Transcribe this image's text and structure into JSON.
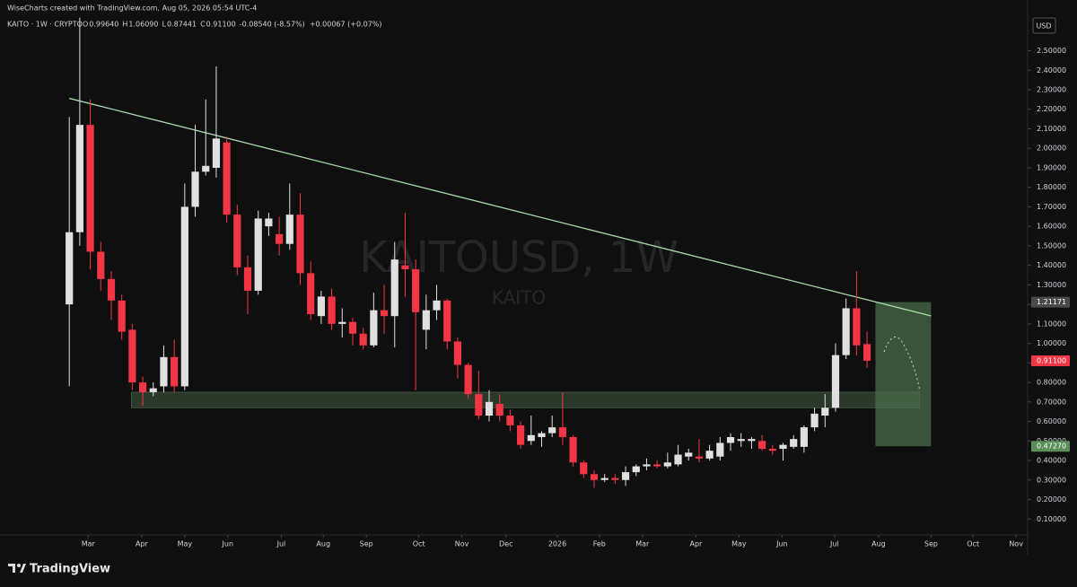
{
  "header": "WiseCharts created with TradingView.com, Aug 05, 2026 05:54 UTC-4",
  "legend": {
    "symbol": "KAITO · 1W · CRYPTO",
    "items": [
      {
        "key": "O",
        "value": "0.99640"
      },
      {
        "key": "H",
        "value": "1.06090"
      },
      {
        "key": "L",
        "value": "0.87441"
      },
      {
        "key": "C",
        "value": "0.91100"
      }
    ],
    "change": "-0.08540 (-8.57%)",
    "extra": "+0.00067 (+0.07%)"
  },
  "currency": "USD",
  "brand": "TradingView",
  "chart_data": {
    "type": "candlestick",
    "watermark": "KAITOUSD, 1W",
    "watermark_sub": "KAITO",
    "up_color": "#e0e0e0",
    "down_color": "#f23645",
    "open": [
      1.2,
      1.57,
      2.12,
      1.47,
      1.33,
      1.22,
      1.07,
      0.8,
      0.75,
      0.78,
      0.93,
      0.78,
      1.7,
      1.88,
      1.9,
      2.03,
      1.66,
      1.39,
      1.27,
      1.6,
      1.56,
      1.51,
      1.66,
      1.36,
      1.14,
      1.24,
      1.1,
      1.11,
      1.05,
      0.99,
      1.17,
      1.14,
      1.4,
      1.38,
      1.07,
      1.17,
      1.22,
      1.01,
      0.89,
      0.74,
      0.63,
      0.69,
      0.63,
      0.58,
      0.5,
      0.52,
      0.54,
      0.57,
      0.52,
      0.39,
      0.33,
      0.3,
      0.31,
      0.3,
      0.34,
      0.37,
      0.38,
      0.37,
      0.38,
      0.42,
      0.42,
      0.41,
      0.42,
      0.49,
      0.5,
      0.5,
      0.5,
      0.46,
      0.46,
      0.47,
      0.47,
      0.57,
      0.63,
      0.67,
      0.94,
      1.18,
      0.9964
    ],
    "high": [
      2.16,
      2.67,
      2.25,
      1.52,
      1.37,
      1.25,
      1.1,
      0.83,
      0.8,
      0.99,
      1.02,
      1.82,
      2.12,
      2.25,
      2.42,
      2.06,
      1.71,
      1.45,
      1.68,
      1.67,
      1.65,
      1.82,
      1.77,
      1.42,
      1.27,
      1.28,
      1.18,
      1.13,
      1.08,
      1.26,
      1.3,
      1.52,
      1.67,
      1.43,
      1.25,
      1.3,
      1.23,
      1.03,
      0.9,
      0.86,
      0.76,
      0.74,
      0.66,
      0.6,
      0.63,
      0.55,
      0.63,
      0.75,
      0.53,
      0.4,
      0.35,
      0.33,
      0.33,
      0.37,
      0.38,
      0.41,
      0.4,
      0.44,
      0.48,
      0.46,
      0.51,
      0.48,
      0.52,
      0.54,
      0.54,
      0.52,
      0.53,
      0.48,
      0.49,
      0.53,
      0.58,
      0.67,
      0.74,
      1.0,
      1.23,
      1.37,
      1.0609
    ],
    "low": [
      0.78,
      1.5,
      1.38,
      1.27,
      1.12,
      1.02,
      0.76,
      0.68,
      0.73,
      0.75,
      0.75,
      0.76,
      1.65,
      1.86,
      1.85,
      1.62,
      1.35,
      1.15,
      1.25,
      1.55,
      1.45,
      1.48,
      1.3,
      1.12,
      1.1,
      1.07,
      1.03,
      0.99,
      0.97,
      0.98,
      1.05,
      0.98,
      1.24,
      0.76,
      0.97,
      1.12,
      0.97,
      0.82,
      0.72,
      0.61,
      0.6,
      0.6,
      0.55,
      0.46,
      0.48,
      0.47,
      0.52,
      0.48,
      0.37,
      0.31,
      0.26,
      0.29,
      0.28,
      0.27,
      0.32,
      0.35,
      0.36,
      0.36,
      0.37,
      0.4,
      0.39,
      0.4,
      0.4,
      0.45,
      0.47,
      0.46,
      0.45,
      0.43,
      0.4,
      0.46,
      0.44,
      0.55,
      0.57,
      0.65,
      0.92,
      0.94,
      0.87441
    ],
    "close": [
      1.57,
      2.12,
      1.47,
      1.33,
      1.22,
      1.06,
      0.8,
      0.75,
      0.77,
      0.93,
      0.78,
      1.7,
      1.88,
      1.91,
      2.05,
      1.66,
      1.39,
      1.27,
      1.64,
      1.64,
      1.51,
      1.66,
      1.36,
      1.15,
      1.24,
      1.1,
      1.11,
      1.05,
      0.99,
      1.17,
      1.14,
      1.43,
      1.38,
      1.16,
      1.17,
      1.22,
      1.01,
      0.89,
      0.74,
      0.63,
      0.7,
      0.63,
      0.58,
      0.48,
      0.53,
      0.54,
      0.57,
      0.52,
      0.39,
      0.33,
      0.3,
      0.31,
      0.3,
      0.34,
      0.37,
      0.38,
      0.37,
      0.39,
      0.43,
      0.44,
      0.41,
      0.45,
      0.49,
      0.52,
      0.51,
      0.51,
      0.46,
      0.45,
      0.48,
      0.51,
      0.57,
      0.64,
      0.67,
      0.94,
      1.18,
      0.99,
      0.911
    ],
    "xlim": [
      -6.6,
      91.3
    ],
    "xticks": [
      {
        "value": 1.8,
        "label": "Mar"
      },
      {
        "value": 6.9,
        "label": "Apr"
      },
      {
        "value": 11.0,
        "label": "May"
      },
      {
        "value": 15.1,
        "label": "Jun"
      },
      {
        "value": 20.2,
        "label": "Jul"
      },
      {
        "value": 24.2,
        "label": "Aug"
      },
      {
        "value": 28.3,
        "label": "Sep"
      },
      {
        "value": 33.3,
        "label": "Oct"
      },
      {
        "value": 37.4,
        "label": "Nov"
      },
      {
        "value": 41.6,
        "label": "Dec"
      },
      {
        "value": 46.5,
        "label": "2026"
      },
      {
        "value": 50.5,
        "label": "Feb"
      },
      {
        "value": 54.6,
        "label": "Mar"
      },
      {
        "value": 59.7,
        "label": "Apr"
      },
      {
        "value": 63.8,
        "label": "May"
      },
      {
        "value": 67.9,
        "label": "Jun"
      },
      {
        "value": 72.9,
        "label": "Jul"
      },
      {
        "value": 77.1,
        "label": "Aug"
      },
      {
        "value": 82.1,
        "label": "Sep"
      },
      {
        "value": 86.1,
        "label": "Oct"
      },
      {
        "value": 90.2,
        "label": "Nov"
      }
    ],
    "ylim": [
      0,
      2.76
    ],
    "yticks": [
      {
        "value": 0.1,
        "label": "0.10000"
      },
      {
        "value": 0.2,
        "label": "0.20000"
      },
      {
        "value": 0.3,
        "label": "0.30000"
      },
      {
        "value": 0.4,
        "label": "0.40000"
      },
      {
        "value": 0.5,
        "label": "0.50000"
      },
      {
        "value": 0.6,
        "label": "0.60000"
      },
      {
        "value": 0.7,
        "label": "0.70000"
      },
      {
        "value": 0.8,
        "label": "0.80000"
      },
      {
        "value": 0.9,
        "label": "0.90000"
      },
      {
        "value": 1.0,
        "label": "1.00000"
      },
      {
        "value": 1.1,
        "label": "1.10000"
      },
      {
        "value": 1.2,
        "label": "1.20000"
      },
      {
        "value": 1.3,
        "label": "1.30000"
      },
      {
        "value": 1.4,
        "label": "1.40000"
      },
      {
        "value": 1.5,
        "label": "1.50000"
      },
      {
        "value": 1.6,
        "label": "1.60000"
      },
      {
        "value": 1.7,
        "label": "1.70000"
      },
      {
        "value": 1.8,
        "label": "1.80000"
      },
      {
        "value": 1.9,
        "label": "1.90000"
      },
      {
        "value": 2.0,
        "label": "2.00000"
      },
      {
        "value": 2.1,
        "label": "2.10000"
      },
      {
        "value": 2.2,
        "label": "2.20000"
      },
      {
        "value": 2.3,
        "label": "2.30000"
      },
      {
        "value": 2.4,
        "label": "2.40000"
      },
      {
        "value": 2.5,
        "label": "2.50000"
      }
    ],
    "price_tags": [
      {
        "value": 1.21171,
        "label": "1.21171",
        "color": "#4a4a4a"
      },
      {
        "value": 0.911,
        "label": "0.91100",
        "color": "#f23645"
      },
      {
        "value": 0.4727,
        "label": "0.47270",
        "color": "#5a8f5a"
      }
    ],
    "trendline": {
      "x": [
        0,
        82.1
      ],
      "y": [
        2.256,
        1.141
      ],
      "color": "#a9dca9"
    },
    "zone": {
      "x": [
        5.9,
        81.0
      ],
      "y": [
        0.67,
        0.75
      ],
      "color": "#3c553c"
    },
    "target_box": {
      "x": [
        76.8,
        82.1
      ],
      "y": [
        0.4727,
        1.21171
      ],
      "color": "#4f6f4f"
    }
  }
}
